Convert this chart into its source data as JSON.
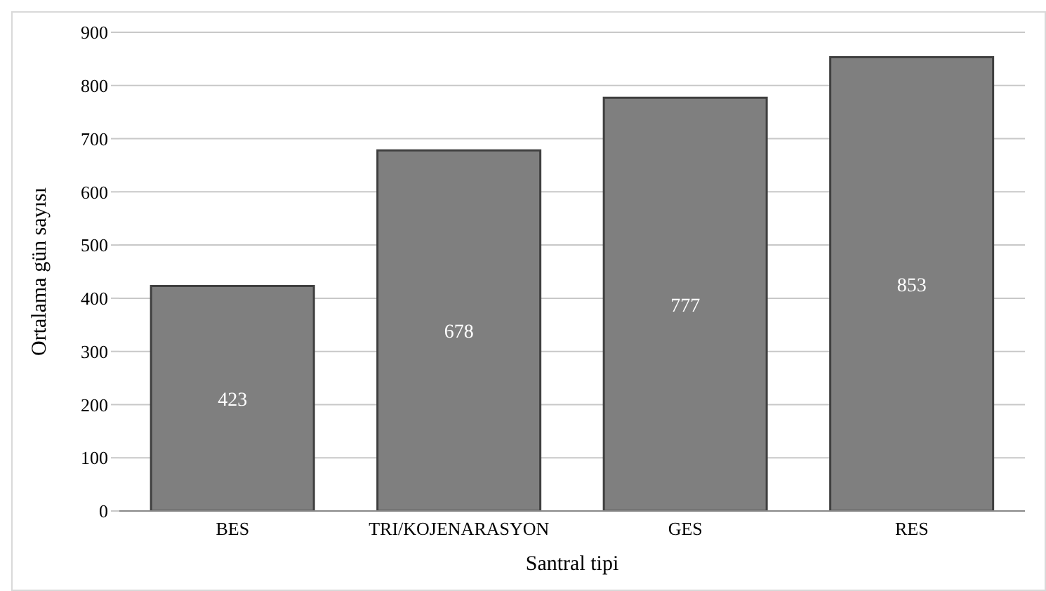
{
  "chart_data": {
    "type": "bar",
    "xlabel": "Santral tipi",
    "ylabel": "Ortalama gün sayısı",
    "categories": [
      "BES",
      "TRI/KOJENARASYON",
      "GES",
      "RES"
    ],
    "values": [
      423,
      678,
      777,
      853
    ],
    "color": "#7f7f7f",
    "ylim": [
      0,
      900
    ],
    "yticks": [
      0,
      100,
      200,
      300,
      400,
      500,
      600,
      700,
      800,
      900
    ],
    "grid": "y",
    "data_labels": true
  }
}
